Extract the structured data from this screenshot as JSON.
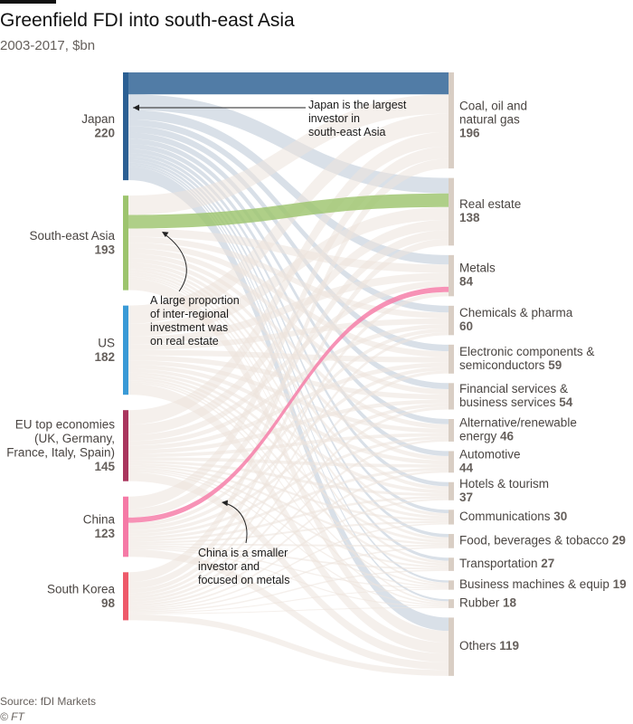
{
  "header": {
    "title": "Greenfield FDI into south-east Asia",
    "subtitle": "2003-2017, $bn"
  },
  "footer": {
    "source": "Source: fDI Markets",
    "copyright": "© FT"
  },
  "colors": {
    "japan": "#2b5f93",
    "south_east_asia": "#9dc46e",
    "us": "#3a9ad6",
    "eu": "#a9365e",
    "china": "#f57aa6",
    "south_korea": "#ee5a6a",
    "sector_bar": "#d9cec4",
    "background_flow": "#ece4dc"
  },
  "chart_data": {
    "type": "sankey",
    "title": "Greenfield FDI into south-east Asia",
    "subtitle": "2003-2017, $bn",
    "units": "$bn",
    "sources": [
      {
        "name": "Japan",
        "value": 220
      },
      {
        "name": "South-east Asia",
        "value": 193
      },
      {
        "name": "US",
        "value": 182
      },
      {
        "name": "EU top economies (UK, Germany, France, Italy, Spain)",
        "value": 145
      },
      {
        "name": "China",
        "value": 123
      },
      {
        "name": "South Korea",
        "value": 98
      }
    ],
    "sectors": [
      {
        "name": "Coal, oil and natural gas",
        "value": 196
      },
      {
        "name": "Real estate",
        "value": 138
      },
      {
        "name": "Metals",
        "value": 84
      },
      {
        "name": "Chemicals & pharma",
        "value": 60
      },
      {
        "name": "Electronic components & semiconductors",
        "value": 59
      },
      {
        "name": "Financial services & business services",
        "value": 54
      },
      {
        "name": "Alternative/renewable energy",
        "value": 46
      },
      {
        "name": "Automotive",
        "value": 44
      },
      {
        "name": "Hotels & tourism",
        "value": 37
      },
      {
        "name": "Communications",
        "value": 30
      },
      {
        "name": "Food, beverages & tobacco",
        "value": 29
      },
      {
        "name": "Transportation",
        "value": 27
      },
      {
        "name": "Business machines & equip",
        "value": 19
      },
      {
        "name": "Rubber",
        "value": 18
      },
      {
        "name": "Others",
        "value": 119
      }
    ],
    "annotations": [
      {
        "text": "Japan is the largest investor in south-east Asia",
        "lines": [
          "Japan is the largest",
          "investor in",
          "south-east Asia"
        ]
      },
      {
        "text": "A large proportion of inter-regional investment was on real estate",
        "lines": [
          "A large proportion",
          "of inter-regional",
          "investment was",
          "on real estate"
        ]
      },
      {
        "text": "China is a smaller investor and focused on metals",
        "lines": [
          "China is a smaller",
          "investor and",
          "focused on metals"
        ]
      }
    ]
  }
}
